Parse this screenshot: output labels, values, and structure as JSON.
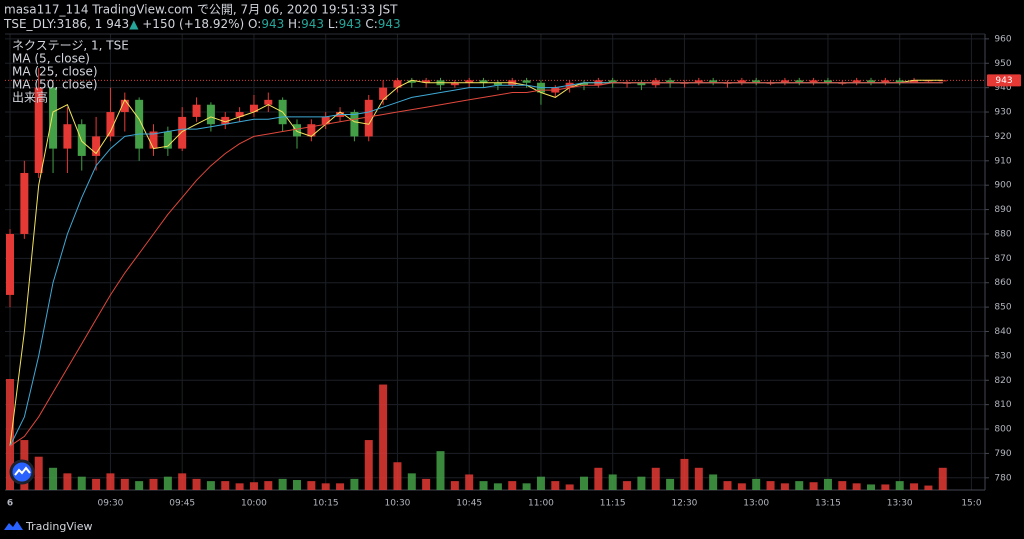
{
  "header": {
    "title": "masa117_114 TradingView.com で公開, 7月 06, 2020 19:51:33 JST",
    "symbol": "TSE_DLY:3186, 1",
    "price": "943",
    "arrow": "▲",
    "change": "+150 (+18.92%)",
    "ohlc": [
      {
        "label": "O:",
        "value": "943"
      },
      {
        "label": "H:",
        "value": "943"
      },
      {
        "label": "L:",
        "value": "943"
      },
      {
        "label": "C:",
        "value": "943"
      }
    ]
  },
  "chart_data": {
    "type": "candlestick",
    "instrument": "ネクステージ, 1, TSE",
    "volume_name": "出来高",
    "up_color": "#e53935",
    "down_color": "#43a047",
    "categories": [
      "6",
      null,
      null,
      null,
      null,
      null,
      null,
      "09:30",
      null,
      null,
      null,
      null,
      "09:45",
      null,
      null,
      null,
      null,
      "10:00",
      null,
      null,
      null,
      null,
      "10:15",
      null,
      null,
      null,
      null,
      "10:30",
      null,
      null,
      null,
      null,
      "10:45",
      null,
      null,
      null,
      null,
      "11:00",
      null,
      null,
      null,
      null,
      "11:15",
      null,
      null,
      null,
      null,
      "12:30",
      null,
      null,
      null,
      null,
      "13:00",
      null,
      null,
      null,
      null,
      "13:15",
      null,
      null,
      null,
      null,
      "13:30",
      null,
      null,
      null,
      null,
      "15:0"
    ],
    "open": [
      855,
      880,
      905,
      940,
      915,
      925,
      912,
      920,
      930,
      935,
      915,
      922,
      915,
      928,
      933,
      925,
      928,
      930,
      933,
      935,
      925,
      920,
      925,
      928,
      930,
      920,
      935,
      940,
      943,
      942,
      943,
      941,
      942,
      943,
      942,
      941,
      943,
      942,
      938,
      940,
      942,
      941,
      943,
      942,
      942,
      941,
      943,
      942,
      942,
      943,
      942,
      942,
      943,
      942,
      942,
      943,
      942,
      943,
      942,
      942,
      943,
      942,
      943,
      942,
      943,
      943,
      null,
      null
    ],
    "high": [
      882,
      910,
      948,
      942,
      932,
      927,
      928,
      940,
      938,
      936,
      925,
      924,
      932,
      936,
      934,
      930,
      932,
      937,
      938,
      936,
      927,
      927,
      930,
      932,
      931,
      937,
      943,
      944,
      944,
      944,
      944,
      943,
      944,
      944,
      943,
      944,
      944,
      943,
      941,
      943,
      943,
      944,
      944,
      943,
      943,
      944,
      944,
      943,
      944,
      944,
      943,
      944,
      944,
      943,
      944,
      944,
      944,
      944,
      943,
      944,
      944,
      944,
      944,
      944,
      943,
      943,
      null,
      null
    ],
    "low": [
      850,
      878,
      903,
      905,
      905,
      906,
      906,
      918,
      922,
      910,
      912,
      912,
      914,
      926,
      922,
      923,
      926,
      928,
      930,
      922,
      915,
      918,
      923,
      926,
      918,
      918,
      933,
      938,
      940,
      940,
      939,
      940,
      940,
      940,
      939,
      940,
      940,
      933,
      936,
      938,
      939,
      940,
      940,
      940,
      939,
      940,
      940,
      940,
      941,
      941,
      940,
      941,
      941,
      941,
      941,
      941,
      941,
      941,
      941,
      941,
      941,
      941,
      941,
      942,
      942,
      943,
      null,
      null
    ],
    "close": [
      880,
      905,
      940,
      915,
      925,
      912,
      920,
      930,
      935,
      915,
      922,
      915,
      928,
      933,
      925,
      928,
      930,
      933,
      935,
      925,
      920,
      925,
      928,
      930,
      920,
      935,
      940,
      943,
      942,
      943,
      941,
      942,
      943,
      942,
      941,
      943,
      942,
      938,
      940,
      942,
      941,
      943,
      942,
      942,
      941,
      943,
      942,
      942,
      943,
      942,
      942,
      943,
      942,
      942,
      943,
      942,
      943,
      942,
      942,
      943,
      942,
      943,
      942,
      943,
      943,
      943,
      null,
      null
    ],
    "volume": [
      100,
      45,
      30,
      20,
      15,
      12,
      10,
      15,
      10,
      8,
      10,
      12,
      15,
      10,
      8,
      8,
      6,
      7,
      8,
      10,
      9,
      8,
      6,
      6,
      10,
      45,
      95,
      25,
      15,
      10,
      35,
      8,
      14,
      8,
      6,
      8,
      6,
      12,
      8,
      5,
      12,
      20,
      14,
      8,
      12,
      20,
      10,
      28,
      20,
      14,
      8,
      6,
      10,
      8,
      6,
      8,
      7,
      10,
      8,
      6,
      5,
      5,
      8,
      6,
      4,
      20,
      null,
      null
    ],
    "series": [
      {
        "name": "MA (5, close)",
        "color": "#f2e35c",
        "values": [
          793,
          840,
          900,
          930,
          933,
          918,
          913,
          922,
          935,
          927,
          915,
          916,
          922,
          925,
          928,
          926,
          928,
          930,
          933,
          930,
          922,
          920,
          925,
          930,
          926,
          925,
          935,
          940,
          943,
          942,
          942,
          942,
          942,
          942,
          942,
          942,
          941,
          938,
          936,
          940,
          942,
          942,
          942,
          942,
          942,
          942,
          942,
          942,
          942,
          942,
          942,
          942,
          942,
          942,
          942,
          942,
          942,
          942,
          942,
          942,
          942,
          942,
          942,
          943,
          943,
          943,
          null,
          null
        ]
      },
      {
        "name": "MA (25, close)",
        "color": "#3fa9d6",
        "values": [
          793,
          805,
          830,
          860,
          880,
          895,
          908,
          915,
          920,
          921,
          921,
          922,
          923,
          923,
          924,
          925,
          926,
          927,
          927,
          928,
          928,
          928,
          928,
          929,
          929,
          930,
          932,
          934,
          936,
          937,
          938,
          939,
          940,
          940,
          941,
          941,
          941,
          940,
          940,
          941,
          942,
          942,
          942,
          942,
          942,
          942,
          942,
          942,
          942,
          942,
          942,
          942,
          942,
          942,
          942,
          942,
          942,
          942,
          942,
          942,
          942,
          942,
          942,
          942,
          942,
          942,
          null,
          null
        ]
      },
      {
        "name": "MA (50, close)",
        "color": "#e0483c",
        "values": [
          793,
          797,
          805,
          815,
          825,
          835,
          845,
          855,
          864,
          872,
          880,
          888,
          895,
          902,
          908,
          913,
          917,
          920,
          921,
          922,
          923,
          924,
          925,
          926,
          927,
          928,
          929,
          930,
          931,
          932,
          933,
          934,
          935,
          936,
          937,
          938,
          938,
          939,
          939,
          940,
          941,
          941,
          942,
          942,
          942,
          942,
          942,
          942,
          942,
          942,
          942,
          942,
          942,
          942,
          942,
          942,
          942,
          942,
          942,
          942,
          942,
          942,
          942,
          942,
          942,
          942,
          null,
          null
        ]
      }
    ],
    "last_price": 943,
    "ylim": [
      775,
      962
    ],
    "yticks": [
      780,
      790,
      800,
      810,
      820,
      830,
      840,
      850,
      860,
      870,
      880,
      890,
      900,
      910,
      920,
      930,
      940,
      950,
      960
    ],
    "grid": true
  },
  "footer": {
    "brand": "TradingView"
  }
}
